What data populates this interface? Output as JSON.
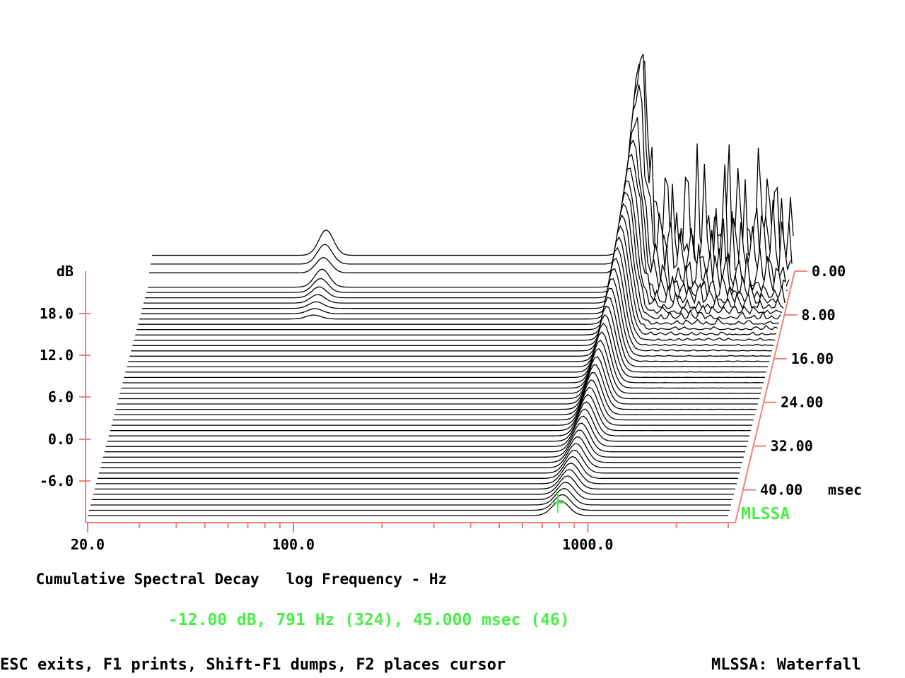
{
  "window": {
    "title": "MLSSA: Waterfall"
  },
  "chart_data": {
    "type": "waterfall",
    "title": "Cumulative Spectral Decay",
    "xlabel": "log Frequency - Hz",
    "ylabel": "dB",
    "x_scale": "log",
    "xlim": [
      20,
      3000
    ],
    "x_ticks": [
      "20.0",
      "100.0",
      "1000.0"
    ],
    "y_ticks": [
      "18.0",
      "12.0",
      "6.0",
      "0.0",
      "-6.0"
    ],
    "z_label": "msec",
    "z_ticks": [
      "0.00",
      "8.00",
      "16.00",
      "24.00",
      "32.00",
      "40.00"
    ],
    "zlim": [
      0,
      46
    ],
    "slice_count": 47,
    "brand": "MLSSA",
    "colors": {
      "axes": "#f08080",
      "traces": "#000000",
      "accent": "#4aee4a",
      "background": "#ffffff"
    }
  },
  "cursor": {
    "readout": "-12.00 dB, 791 Hz (324), 45.000 msec (46)",
    "level_db": -12.0,
    "frequency_hz": 791,
    "time_msec": 45.0
  },
  "status_bar": {
    "help": "ESC exits, F1 prints, Shift-F1 dumps, F2 places cursor",
    "mode": "MLSSA: Waterfall"
  }
}
